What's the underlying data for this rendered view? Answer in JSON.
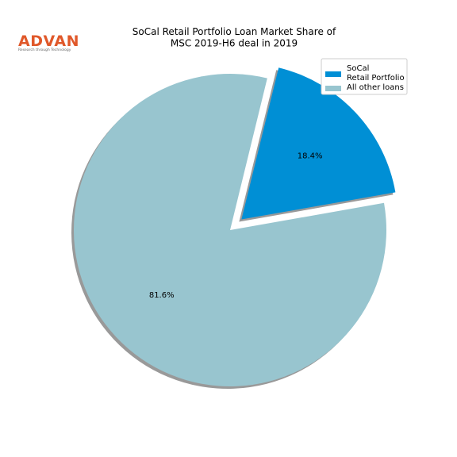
{
  "logo": {
    "name": "ADVAN",
    "tagline": "Research through Technology"
  },
  "chart_data": {
    "type": "pie",
    "title": "SoCal Retail Portfolio Loan Market Share of\nMSC 2019-H6 deal in 2019",
    "categories": [
      "SoCal\nRetail Portfolio",
      "All other loans"
    ],
    "values": [
      18.4,
      81.6
    ],
    "value_labels": [
      "18.4%",
      "81.6%"
    ],
    "colors": [
      "#008fd5",
      "#98c5cf"
    ],
    "legend": "upper right"
  }
}
